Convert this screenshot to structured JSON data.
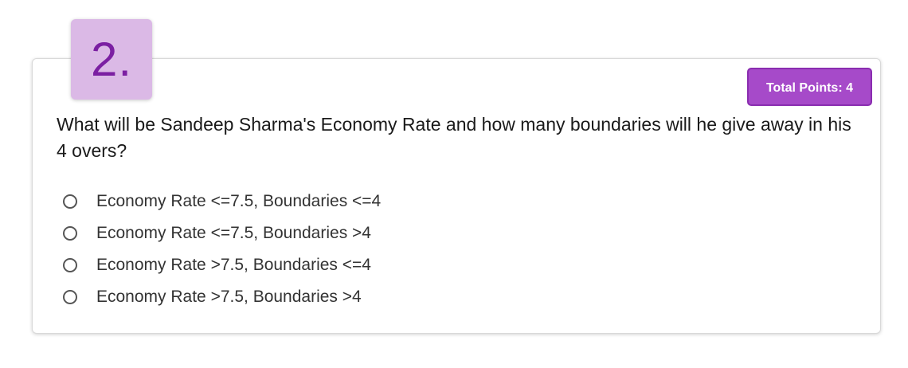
{
  "question": {
    "number": "2.",
    "points_label": "Total Points: 4",
    "text": "What will be Sandeep Sharma's Economy Rate and how many boundaries will he give away in his 4 overs?",
    "options": [
      {
        "label": "Economy Rate <=7.5, Boundaries <=4",
        "selected": false
      },
      {
        "label": "Economy Rate <=7.5, Boundaries >4",
        "selected": false
      },
      {
        "label": "Economy Rate >7.5, Boundaries <=4",
        "selected": false
      },
      {
        "label": "Economy Rate >7.5, Boundaries >4",
        "selected": false
      }
    ]
  },
  "colors": {
    "accent": "#a64ac9",
    "badge_bg": "#dbb9e6",
    "badge_text": "#7b1fa2"
  }
}
